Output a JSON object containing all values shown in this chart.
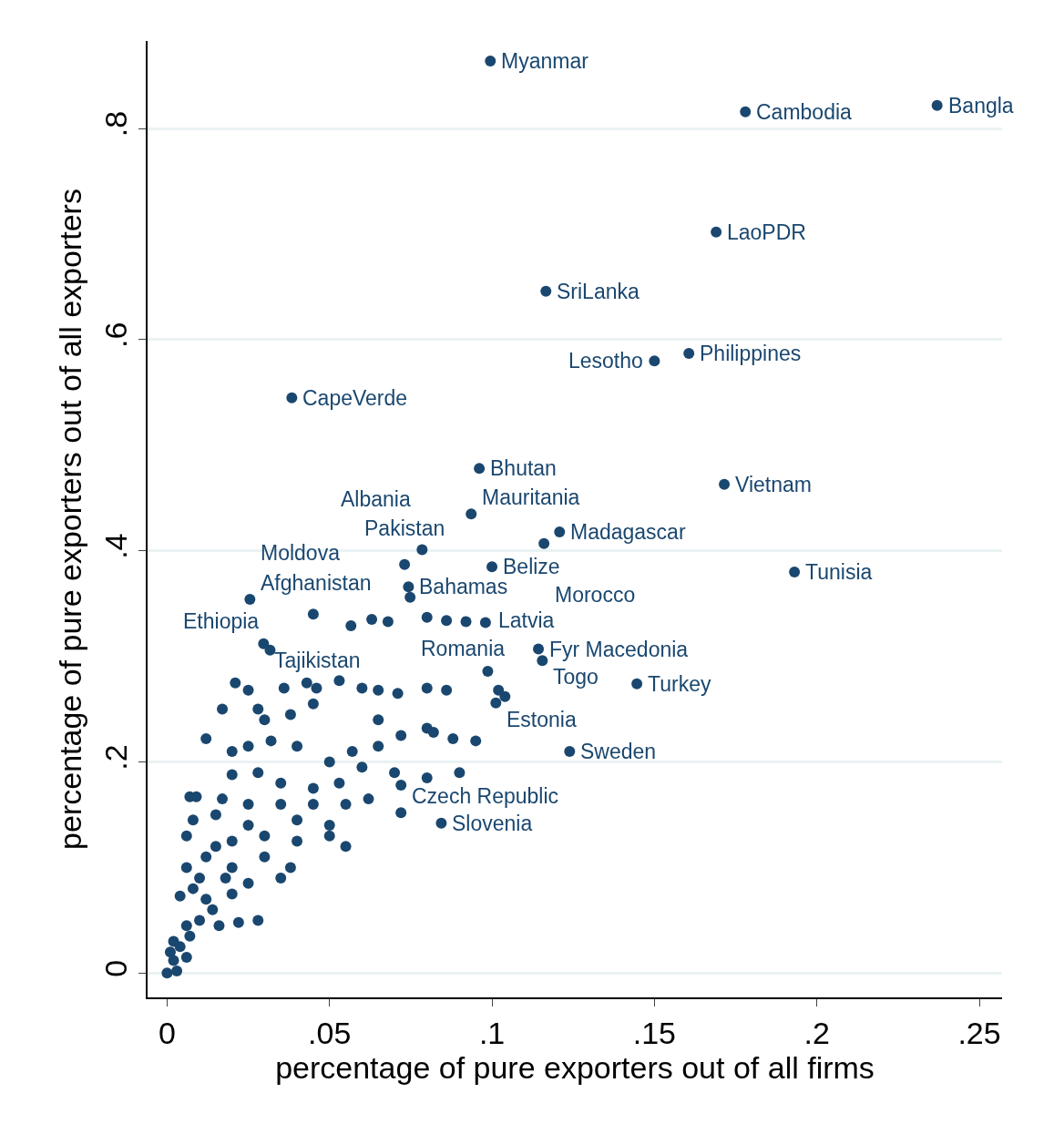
{
  "chart_data": {
    "type": "scatter",
    "xlabel": "percentage of pure exporters out of all firms",
    "ylabel": "percentage of pure exporters out of all exporters",
    "xlim": [
      -0.006,
      0.257
    ],
    "ylim": [
      -0.023,
      0.883
    ],
    "xticks": [
      0,
      {
        "value": 0.05,
        "label": ".05"
      },
      {
        "value": 0.1,
        "label": ".1"
      },
      {
        "value": 0.15,
        "label": ".15"
      },
      {
        "value": 0.2,
        "label": ".2"
      },
      {
        "value": 0.25,
        "label": ".25"
      }
    ],
    "yticks": [
      0,
      {
        "value": 0.2,
        "label": ".2"
      },
      {
        "value": 0.4,
        "label": ".4"
      },
      {
        "value": 0.6,
        "label": ".6"
      },
      {
        "value": 0.8,
        "label": ".8"
      }
    ],
    "grid": "y",
    "marker": "circle",
    "legend": false,
    "series": [
      {
        "color": "#1a476f",
        "x": [
          0.0995,
          0.237,
          0.178,
          0.169,
          0.1166,
          0.1606,
          0.15,
          0.0384,
          0.0961,
          0.1715,
          0.0936,
          0.1208,
          0.116,
          0.0785,
          0.1,
          0.0731,
          0.1931,
          0.0743,
          0.0748,
          0.0255,
          0.0566,
          0.0297,
          0.0317,
          0.1143,
          0.1155,
          0.0987,
          0.1446,
          0.1012,
          0.1239,
          0.0844,
          0.072,
          0.021,
          0.025,
          0.036,
          0.043,
          0.046,
          0.053,
          0.06,
          0.065,
          0.071,
          0.08,
          0.086,
          0.102,
          0.104,
          0.045,
          0.063,
          0.068,
          0.08,
          0.086,
          0.092,
          0.098,
          0.017,
          0.028,
          0.03,
          0.038,
          0.045,
          0.065,
          0.08,
          0.012,
          0.02,
          0.025,
          0.032,
          0.04,
          0.05,
          0.057,
          0.065,
          0.072,
          0.082,
          0.088,
          0.095,
          0.06,
          0.07,
          0.08,
          0.09,
          0.007,
          0.009,
          0.02,
          0.028,
          0.035,
          0.045,
          0.053,
          0.062,
          0.072,
          0.017,
          0.025,
          0.035,
          0.045,
          0.055,
          0.008,
          0.015,
          0.025,
          0.04,
          0.05,
          0.006,
          0.015,
          0.02,
          0.03,
          0.04,
          0.05,
          0.055,
          0.012,
          0.02,
          0.03,
          0.038,
          0.006,
          0.01,
          0.018,
          0.025,
          0.035,
          0.004,
          0.008,
          0.012,
          0.02,
          0.014,
          0.006,
          0.01,
          0.016,
          0.022,
          0.028,
          0.007,
          0.002,
          0.001,
          0.004,
          0.002,
          0.006,
          0,
          0.003
        ],
        "values": [
          0.864,
          0.822,
          0.816,
          0.702,
          0.646,
          0.587,
          0.58,
          0.545,
          0.478,
          0.463,
          0.435,
          0.418,
          0.407,
          0.401,
          0.385,
          0.387,
          0.38,
          0.366,
          0.356,
          0.354,
          0.329,
          0.312,
          0.306,
          0.307,
          0.296,
          0.286,
          0.274,
          0.256,
          0.21,
          0.142,
          0.152,
          0.275,
          0.268,
          0.27,
          0.275,
          0.27,
          0.277,
          0.27,
          0.268,
          0.265,
          0.27,
          0.268,
          0.268,
          0.262,
          0.34,
          0.335,
          0.333,
          0.337,
          0.334,
          0.333,
          0.332,
          0.25,
          0.25,
          0.24,
          0.245,
          0.255,
          0.24,
          0.232,
          0.222,
          0.21,
          0.215,
          0.22,
          0.215,
          0.2,
          0.21,
          0.215,
          0.225,
          0.228,
          0.222,
          0.22,
          0.195,
          0.19,
          0.185,
          0.19,
          0.167,
          0.167,
          0.188,
          0.19,
          0.18,
          0.175,
          0.18,
          0.165,
          0.178,
          0.165,
          0.16,
          0.16,
          0.16,
          0.16,
          0.145,
          0.15,
          0.14,
          0.145,
          0.14,
          0.13,
          0.12,
          0.125,
          0.13,
          0.125,
          0.13,
          0.12,
          0.11,
          0.1,
          0.11,
          0.1,
          0.1,
          0.09,
          0.09,
          0.085,
          0.09,
          0.073,
          0.08,
          0.07,
          0.075,
          0.06,
          0.045,
          0.05,
          0.045,
          0.048,
          0.05,
          0.035,
          0.03,
          0.02,
          0.025,
          0.012,
          0.015,
          0,
          0.002
        ]
      }
    ],
    "annotations": [
      {
        "text": "Myanmar",
        "x": 0.0995,
        "y": 0.864
      },
      {
        "text": "Bangla",
        "x": 0.237,
        "y": 0.822
      },
      {
        "text": "Cambodia",
        "x": 0.178,
        "y": 0.816
      },
      {
        "text": "LaoPDR",
        "x": 0.169,
        "y": 0.702
      },
      {
        "text": "SriLanka",
        "x": 0.1166,
        "y": 0.646
      },
      {
        "text": "Philippines",
        "x": 0.1606,
        "y": 0.587
      },
      {
        "text": "Lesotho",
        "x": 0.15,
        "y": 0.58
      },
      {
        "text": "CapeVerde",
        "x": 0.0384,
        "y": 0.545
      },
      {
        "text": "Bhutan",
        "x": 0.0961,
        "y": 0.478
      },
      {
        "text": "Vietnam",
        "x": 0.1715,
        "y": 0.463
      },
      {
        "text": "Mauritania",
        "x": 0.0936,
        "y": 0.435
      },
      {
        "text": "Madagascar",
        "x": 0.1208,
        "y": 0.418
      },
      {
        "text": "Morocco",
        "x": 0.116,
        "y": 0.407
      },
      {
        "text": "Albania",
        "x": 0.0785,
        "y": 0.401
      },
      {
        "text": "Belize",
        "x": 0.1,
        "y": 0.385
      },
      {
        "text": "Pakistan",
        "x": 0.0731,
        "y": 0.387
      },
      {
        "text": "Tunisia",
        "x": 0.1931,
        "y": 0.38
      },
      {
        "text": "Bahamas",
        "x": 0.0743,
        "y": 0.366
      },
      {
        "text": "Romania",
        "x": 0.0748,
        "y": 0.356
      },
      {
        "text": "Afghanistan",
        "x": 0.0255,
        "y": 0.354
      },
      {
        "text": "Moldova",
        "x": 0.0566,
        "y": 0.329
      },
      {
        "text": "Tajikistan",
        "x": 0.0297,
        "y": 0.312
      },
      {
        "text": "Ethiopia",
        "x": 0.0317,
        "y": 0.306
      },
      {
        "text": "Fyr Macedonia",
        "x": 0.1143,
        "y": 0.307
      },
      {
        "text": "Togo",
        "x": 0.1155,
        "y": 0.296
      },
      {
        "text": "Latvia",
        "x": 0.0987,
        "y": 0.286
      },
      {
        "text": "Turkey",
        "x": 0.1446,
        "y": 0.274
      },
      {
        "text": "Estonia",
        "x": 0.1012,
        "y": 0.256
      },
      {
        "text": "Sweden",
        "x": 0.1239,
        "y": 0.21
      },
      {
        "text": "Slovenia",
        "x": 0.0844,
        "y": 0.142
      },
      {
        "text": "Czech Republic",
        "x": 0.072,
        "y": 0.152
      }
    ]
  }
}
